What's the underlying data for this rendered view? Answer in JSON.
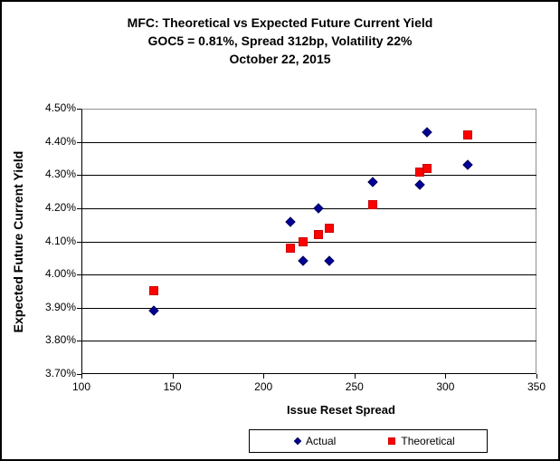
{
  "chart_data": {
    "type": "scatter",
    "title": "MFC: Theoretical vs Expected Future Current Yield",
    "subtitle": "GOC5 = 0.81%, Spread 312bp, Volatility 22%",
    "date_line": "October 22, 2015",
    "xlabel": "Issue Reset Spread",
    "ylabel": "Expected Future Current Yield",
    "xlim": [
      100,
      350
    ],
    "ylim": [
      3.7,
      4.5
    ],
    "grid": "horizontal-major",
    "legend_position": "bottom",
    "x_ticks": [
      {
        "value": 100,
        "label": "100"
      },
      {
        "value": 150,
        "label": "150"
      },
      {
        "value": 200,
        "label": "200"
      },
      {
        "value": 250,
        "label": "250"
      },
      {
        "value": 300,
        "label": "300"
      },
      {
        "value": 350,
        "label": "350"
      }
    ],
    "y_ticks": [
      {
        "value": 4.5,
        "label": "4.50%"
      },
      {
        "value": 4.4,
        "label": "4.40%"
      },
      {
        "value": 4.3,
        "label": "4.30%"
      },
      {
        "value": 4.2,
        "label": "4.20%"
      },
      {
        "value": 4.1,
        "label": "4.10%"
      },
      {
        "value": 4.0,
        "label": "4.00%"
      },
      {
        "value": 3.9,
        "label": "3.90%"
      },
      {
        "value": 3.8,
        "label": "3.80%"
      },
      {
        "value": 3.7,
        "label": "3.70%"
      }
    ],
    "series": [
      {
        "name": "Actual",
        "marker": "diamond",
        "color": "#000099",
        "points": [
          [
            140,
            3.89
          ],
          [
            215,
            4.16
          ],
          [
            222,
            4.04
          ],
          [
            230,
            4.2
          ],
          [
            236,
            4.04
          ],
          [
            260,
            4.28
          ],
          [
            286,
            4.27
          ],
          [
            290,
            4.43
          ],
          [
            312,
            4.33
          ]
        ]
      },
      {
        "name": "Theoretical",
        "marker": "square",
        "color": "#ff0000",
        "points": [
          [
            140,
            3.95
          ],
          [
            215,
            4.08
          ],
          [
            222,
            4.1
          ],
          [
            230,
            4.12
          ],
          [
            236,
            4.14
          ],
          [
            260,
            4.21
          ],
          [
            286,
            4.31
          ],
          [
            290,
            4.32
          ],
          [
            312,
            4.42
          ]
        ]
      }
    ]
  },
  "colors": {
    "actual": "#000099",
    "theoretical": "#ff0000",
    "gridline": "#000000",
    "plot_frame": "#909090",
    "text": "#000000"
  }
}
